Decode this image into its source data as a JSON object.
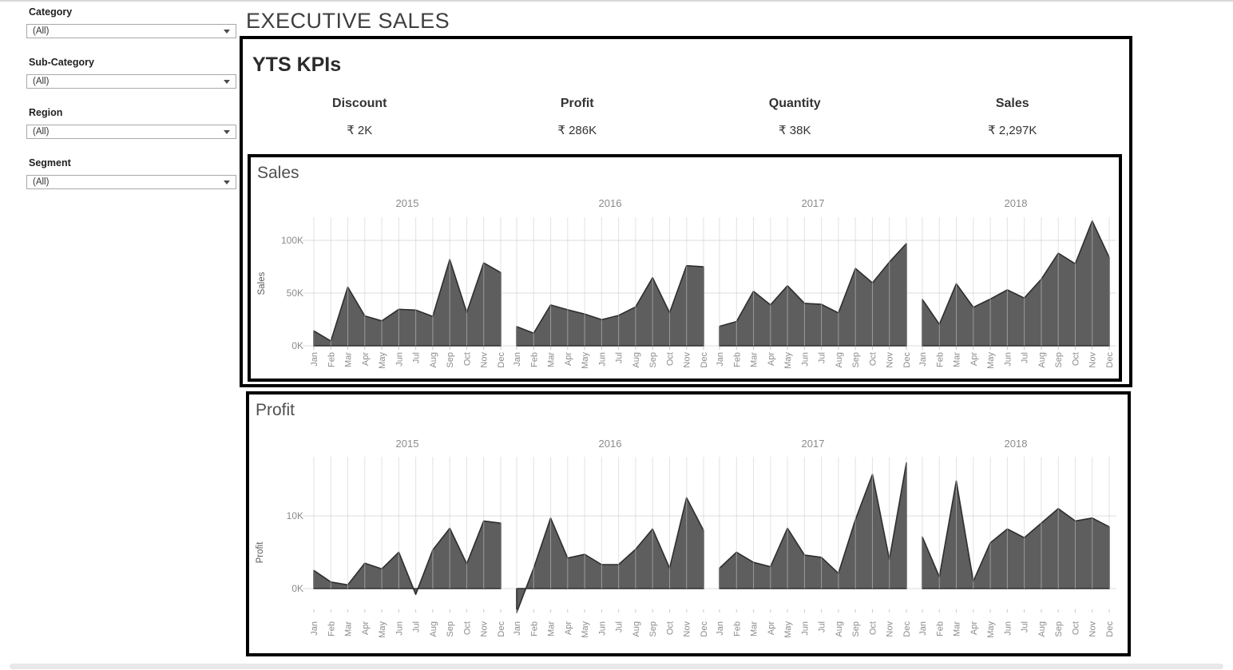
{
  "page_title": "EXECUTIVE SALES",
  "filters": [
    {
      "label": "Category",
      "value": "(All)"
    },
    {
      "label": "Sub-Category",
      "value": "(All)"
    },
    {
      "label": "Region",
      "value": "(All)"
    },
    {
      "label": "Segment",
      "value": "(All)"
    }
  ],
  "kpi_panel": {
    "title": "YTS KPIs",
    "kpis": [
      {
        "label": "Discount",
        "value": "₹ 2K"
      },
      {
        "label": "Profit",
        "value": "₹ 286K"
      },
      {
        "label": "Quantity",
        "value": "₹ 38K"
      },
      {
        "label": "Sales",
        "value": "₹ 2,297K"
      }
    ]
  },
  "colors": {
    "area_fill": "#5e5e5e",
    "area_stroke": "#2e2e2e",
    "axis_text": "#8b8b8b",
    "panel_border": "#000000"
  },
  "chart_data": [
    {
      "type": "area",
      "title": "Sales",
      "ylabel": "Sales",
      "unit": "thousands (K)",
      "panels": [
        "2015",
        "2016",
        "2017",
        "2018"
      ],
      "categories": [
        "Jan",
        "Feb",
        "Mar",
        "Apr",
        "May",
        "Jun",
        "Jul",
        "Aug",
        "Sep",
        "Oct",
        "Nov",
        "Dec"
      ],
      "yticks": [
        {
          "value": 0,
          "label": "0K"
        },
        {
          "value": 50,
          "label": "50K"
        },
        {
          "value": 100,
          "label": "100K"
        }
      ],
      "ylim": [
        0,
        125
      ],
      "grid": true,
      "legend": "none",
      "series": [
        {
          "name": "2015",
          "values": [
            14.2,
            4.5,
            55.7,
            28.3,
            23.6,
            34.6,
            33.9,
            27.9,
            81.8,
            31.5,
            78.6,
            69.5
          ]
        },
        {
          "name": "2016",
          "values": [
            18.2,
            12.0,
            38.7,
            34.2,
            30.1,
            24.8,
            28.8,
            36.9,
            64.6,
            31.4,
            76.0,
            74.9
          ]
        },
        {
          "name": "2017",
          "values": [
            18.5,
            23.0,
            51.7,
            38.8,
            57.0,
            40.3,
            39.3,
            31.1,
            73.4,
            59.7,
            79.4,
            97.0
          ]
        },
        {
          "name": "2018",
          "values": [
            44.0,
            20.3,
            58.9,
            36.5,
            44.3,
            53.0,
            45.3,
            63.1,
            87.9,
            77.8,
            118.4,
            83.8
          ]
        }
      ]
    },
    {
      "type": "area",
      "title": "Profit",
      "ylabel": "Profit",
      "unit": "thousands (K)",
      "panels": [
        "2015",
        "2016",
        "2017",
        "2018"
      ],
      "categories": [
        "Jan",
        "Feb",
        "Mar",
        "Apr",
        "May",
        "Jun",
        "Jul",
        "Aug",
        "Sep",
        "Oct",
        "Nov",
        "Dec"
      ],
      "yticks": [
        {
          "value": 0,
          "label": "0K"
        },
        {
          "value": 10,
          "label": "10K"
        }
      ],
      "ylim": [
        -3.6,
        18.5
      ],
      "grid": true,
      "legend": "none",
      "series": [
        {
          "name": "2015",
          "values": [
            2.5,
            0.9,
            0.5,
            3.5,
            2.7,
            5.0,
            -0.8,
            5.3,
            8.3,
            3.4,
            9.3,
            9.0
          ]
        },
        {
          "name": "2016",
          "values": [
            -3.3,
            2.8,
            9.7,
            4.2,
            4.7,
            3.3,
            3.3,
            5.4,
            8.2,
            2.8,
            12.5,
            8.0
          ]
        },
        {
          "name": "2017",
          "values": [
            2.8,
            5.0,
            3.6,
            3.0,
            8.3,
            4.6,
            4.3,
            2.1,
            9.5,
            15.7,
            4.0,
            17.3
          ]
        },
        {
          "name": "2018",
          "values": [
            7.1,
            1.6,
            14.8,
            1.0,
            6.3,
            8.2,
            7.0,
            9.0,
            11.0,
            9.3,
            9.7,
            8.5
          ]
        }
      ]
    }
  ]
}
